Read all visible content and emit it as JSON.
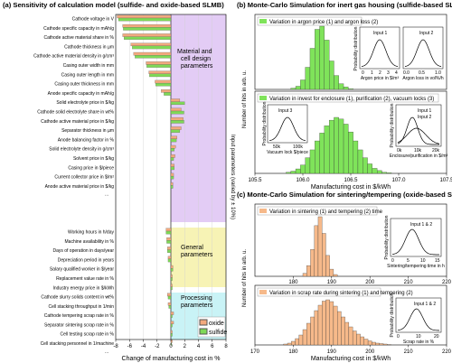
{
  "colors": {
    "oxide": "#f2a97e",
    "sulfide": "#7fd957",
    "purple": "#e3ccf5",
    "yellow": "#f7f3b5",
    "cyan": "#c9f3f6",
    "hist_green": "#7fe35a",
    "hist_orange": "#f6b98a"
  },
  "panel_a": {
    "title": "(a) Sensitivity of calculation model (sulfide- and oxide-based SLMB)",
    "xlabel": "Change of manufacturing cost in %",
    "ylabel_right": "Input parameters (varied by ± 10%)",
    "xticks": [
      "-8",
      "-6",
      "-4",
      "-2",
      "0",
      "2",
      "4",
      "6",
      "8"
    ],
    "legend": [
      {
        "name": "oxide"
      },
      {
        "name": "sulfide"
      }
    ],
    "groups": [
      {
        "label1": "Material and",
        "label2": "cell design",
        "label3": "parameters"
      },
      {
        "label1": "General",
        "label2": "parameters"
      },
      {
        "label1": "Processing",
        "label2": "parameters"
      }
    ],
    "ellipsis": "...",
    "chart_data": {
      "type": "bar",
      "orientation": "horizontal",
      "xlim": [
        -8,
        8
      ],
      "grid": true,
      "legend_position": "bottom-right",
      "sections": [
        {
          "categories": [
            "Cathode voltage in V",
            "Cathode specific capacity in mAh/g",
            "Cathode active material share in %",
            "Cathode thickness in µm",
            "Cathode active material density in g/cm³",
            "Casing outer width in mm",
            "Casing outer length in mm",
            "Casing outer thickness in mm",
            "Anode specific capacity in mAh/g",
            "Solid electrolyte price in $/kg",
            "Cathode solid electrolyte share in wt%",
            "Cathode active material price in $/kg",
            "Separator thickness in µm",
            "Anode balancing factor in %",
            "Solid electrolyte density in g/cm³",
            "Solvent price in $/kg",
            "Casing price in $/piece",
            "Current collector price in $/m²",
            "Anode active material price in $/kg"
          ],
          "series": [
            {
              "name": "oxide",
              "values": [
                -7.8,
                -7.0,
                -7.0,
                -5.8,
                -5.4,
                -3.6,
                -3.2,
                -2.3,
                -1.4,
                1.3,
                1.5,
                1.8,
                1.5,
                0.9,
                0.7,
                0.6,
                0.5,
                0.4,
                0.3
              ]
            },
            {
              "name": "sulfide",
              "values": [
                -7.6,
                -6.9,
                -6.8,
                -5.6,
                -5.2,
                -3.5,
                -3.1,
                -2.2,
                -1.0,
                2.0,
                1.9,
                1.9,
                1.3,
                0.8,
                0.5,
                0.4,
                0.5,
                0.4,
                0.3
              ]
            }
          ]
        },
        {
          "categories": [
            "Working hours in h/day",
            "Machine availability in %",
            "Days of operation in days/year",
            "Depreciation period in years",
            "Salary qualified worker in $/year",
            "Replacement value rate in %",
            "Industry energy price in $/kWh"
          ],
          "series": [
            {
              "name": "oxide",
              "values": [
                -0.7,
                -0.6,
                -0.5,
                -0.4,
                0.3,
                0.2,
                0.2
              ]
            },
            {
              "name": "sulfide",
              "values": [
                -0.7,
                -0.6,
                -0.5,
                -0.4,
                0.3,
                0.2,
                0.2
              ]
            }
          ]
        },
        {
          "categories": [
            "Cathode slurry solids content in wt%",
            "Cell stacking throughput in 1/min",
            "Cathode tempering scrap rate in %",
            "Separator sintering scrap rate in %",
            "Cell testing scrap rate in %",
            "Cell stacking personnel in 1/machine"
          ],
          "series": [
            {
              "name": "oxide",
              "values": [
                -0.5,
                -0.4,
                0.4,
                0.4,
                0.2,
                0.2
              ]
            },
            {
              "name": "sulfide",
              "values": [
                -0.4,
                -0.3,
                0.2,
                0.2,
                0.2,
                0.1
              ]
            }
          ]
        }
      ]
    }
  },
  "panel_b": {
    "title": "(b) Monte-Carlo Simulation for inert gas housing (sulfide-based SLMB)",
    "ylabel": "Number of hits in arb. u.",
    "xlabel": "Manufacturing cost in $/kWh",
    "xticks": [
      "105.5",
      "106.0",
      "106.5",
      "107.0",
      "107.5"
    ],
    "top_label": "Variation in argon price (1) and argon loss (2)",
    "bottom_label": "Variation in invest for enclosure (1), purification (2), vacuum locks (3)",
    "insets": [
      {
        "legend": "Input 1",
        "ylabel": "Probability distribution",
        "xlabel": "Argon price in $/m³",
        "xticks": [
          "0",
          "1",
          "2",
          "3",
          "4"
        ]
      },
      {
        "legend": "Input 2",
        "xlabel": "Argon loss in vol%/h",
        "xticks": [
          "0.0",
          "0.5",
          "1.0"
        ]
      },
      {
        "legend": "Input 3",
        "ylabel": "Probability distribution",
        "xlabel": "Vacuum lock $/piece",
        "xticks": [
          "50k",
          "100k"
        ]
      },
      {
        "legend1": "Input 1",
        "legend2": "Input 2",
        "ylabel": "Probability distribution",
        "xlabel": "Enclosure/purification in $/m³",
        "xticks": [
          "0k",
          "10k",
          "20k"
        ]
      }
    ],
    "chart_data": [
      {
        "type": "bar",
        "xlim": [
          105.5,
          107.5
        ],
        "x": [
          105.9,
          105.95,
          106.0,
          106.05,
          106.1,
          106.15,
          106.2,
          106.25,
          106.3,
          106.35,
          106.4,
          106.45,
          106.5
        ],
        "values": [
          0.02,
          0.05,
          0.15,
          0.35,
          0.65,
          0.95,
          1.0,
          0.78,
          0.45,
          0.22,
          0.09,
          0.04,
          0.01
        ]
      },
      {
        "type": "bar",
        "xlim": [
          105.5,
          107.5
        ],
        "x": [
          105.85,
          105.9,
          105.95,
          106.0,
          106.05,
          106.1,
          106.15,
          106.2,
          106.25,
          106.3,
          106.35,
          106.4,
          106.45,
          106.5,
          106.55,
          106.6,
          106.65,
          106.7,
          106.75,
          106.8,
          106.85,
          106.9
        ],
        "values": [
          0.02,
          0.04,
          0.08,
          0.15,
          0.28,
          0.42,
          0.58,
          0.72,
          0.85,
          0.95,
          1.0,
          0.97,
          0.88,
          0.74,
          0.58,
          0.42,
          0.28,
          0.17,
          0.09,
          0.05,
          0.02,
          0.01
        ]
      }
    ]
  },
  "panel_c": {
    "title": "(c) Monte-Carlo Simulation for sintering/tempering (oxide-based SLMB)",
    "ylabel": "Number of hits in arb. u.",
    "xlabel": "Manufacturing cost in $/kWh",
    "xticks": [
      "180",
      "190",
      "200",
      "210",
      "220"
    ],
    "xticks_full": [
      "170",
      "180",
      "190",
      "200",
      "210",
      "220"
    ],
    "top_label": "Variation in sintering (1) and tempering (2) time",
    "bottom_label": "Variation in scrap rate during sintering (1) and tempering (2)",
    "insets": [
      {
        "legend": "Input 1 & 2",
        "ylabel": "Probability distribution",
        "xlabel": "Sintering/tempering time in h",
        "xticks": [
          "0",
          "5",
          "10",
          "15"
        ]
      },
      {
        "legend": "Input 1 & 2",
        "ylabel": "Probability distribution",
        "xlabel": "Scrap rate in %",
        "xticks": [
          "0",
          "10",
          "20"
        ]
      }
    ],
    "chart_data": [
      {
        "type": "bar",
        "xlim": [
          170,
          220
        ],
        "x": [
          183,
          184,
          185,
          186,
          187,
          188,
          189,
          190,
          191
        ],
        "values": [
          0.05,
          0.18,
          0.45,
          0.85,
          1.0,
          0.72,
          0.35,
          0.12,
          0.03
        ]
      },
      {
        "type": "bar",
        "xlim": [
          170,
          220
        ],
        "x": [
          178,
          179,
          180,
          181,
          182,
          183,
          184,
          185,
          186,
          187,
          188,
          189,
          190,
          191,
          192,
          193,
          194,
          195,
          196,
          197,
          198,
          199,
          200,
          201,
          202,
          203,
          204,
          205
        ],
        "values": [
          0.02,
          0.04,
          0.08,
          0.14,
          0.22,
          0.34,
          0.48,
          0.62,
          0.76,
          0.88,
          0.97,
          1.0,
          0.96,
          0.86,
          0.74,
          0.62,
          0.5,
          0.4,
          0.31,
          0.24,
          0.18,
          0.13,
          0.09,
          0.06,
          0.04,
          0.03,
          0.02,
          0.01
        ]
      }
    ]
  }
}
